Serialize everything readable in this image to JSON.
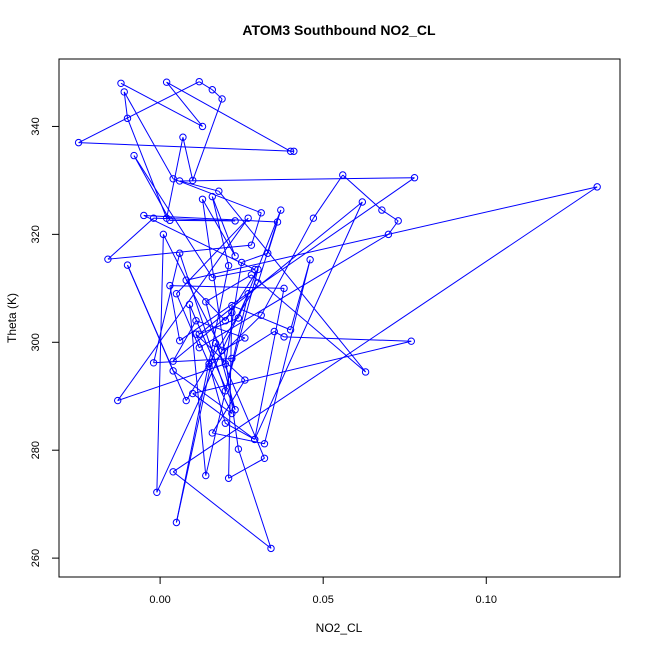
{
  "chart_data": {
    "type": "line",
    "title": "ATOM3 Southbound NO2_CL",
    "xlabel": "NO2_CL",
    "ylabel": "Theta (K)",
    "xlim": [
      -0.031,
      0.141
    ],
    "ylim": [
      256.5,
      352.5
    ],
    "xticks": [
      0.0,
      0.05,
      0.1
    ],
    "xtick_labels": [
      "0.00",
      "0.05",
      "0.10"
    ],
    "yticks": [
      260,
      280,
      300,
      320,
      340
    ],
    "ytick_labels": [
      "260",
      "280",
      "300",
      "320",
      "340"
    ],
    "grid": false,
    "legend": "none",
    "color": "#0000ff",
    "marker": "open-circle",
    "series": [
      {
        "x": [
          -0.012,
          0.013,
          0.002,
          0.04,
          0.041,
          -0.025,
          0.012,
          0.016,
          0.019,
          0.01,
          0.007,
          0.002,
          -0.01,
          -0.011,
          0.004,
          0.031,
          0.028,
          -0.016,
          -0.002,
          0.023,
          0.003,
          -0.008,
          0.016,
          0.029,
          -0.005,
          0.036,
          0.033,
          0.025,
          0.02,
          -0.013,
          0.027,
          0.005,
          0.012,
          0.07,
          0.073,
          0.068,
          0.056,
          0.047,
          0.031,
          0.015,
          0.022,
          0.004,
          -0.01,
          0.008,
          0.03,
          0.037,
          0.024,
          0.012,
          0.062,
          0.029,
          0.01,
          0.077,
          0.038,
          0.035,
          0.022,
          -0.002,
          0.006,
          0.02,
          0.03,
          0.02,
          0.008,
          0.134,
          0.004,
          0.034,
          0.024,
          0.013,
          0.023,
          0.016,
          0.021,
          0.005,
          0.017,
          0.032,
          0.021,
          0.022,
          0.04,
          0.046,
          0.032,
          0.016,
          0.026,
          0.011,
          0.015,
          0.02,
          0.029,
          0.038,
          0.003,
          0.006,
          0.078,
          0.006,
          0.018,
          0.063,
          0.028,
          0.014,
          0.023,
          0.009,
          0.014,
          0.027,
          -0.001,
          0.001,
          0.019,
          0.026,
          0.011,
          0.004,
          0.022
        ],
        "y": [
          348.0,
          340.0,
          348.2,
          335.4,
          335.4,
          337.0,
          348.3,
          346.8,
          345.1,
          330.0,
          338.0,
          323.0,
          341.5,
          346.4,
          330.3,
          324.0,
          318.0,
          315.4,
          323.0,
          322.5,
          322.6,
          334.6,
          312.0,
          313.5,
          323.5,
          322.3,
          316.5,
          314.8,
          296.0,
          289.2,
          323.0,
          309.0,
          299.0,
          320.0,
          322.5,
          324.5,
          331.0,
          323.0,
          305.0,
          295.5,
          286.8,
          294.7,
          314.3,
          289.2,
          311.0,
          324.5,
          304.5,
          301.5,
          326.0,
          282.0,
          290.5,
          300.2,
          301.0,
          302.0,
          297.0,
          296.2,
          316.5,
          291.0,
          313.5,
          304.0,
          311.5,
          328.8,
          276.0,
          261.8,
          280.2,
          326.5,
          316.0,
          327.0,
          314.2,
          266.6,
          299.8,
          278.5,
          274.8,
          306.8,
          302.3,
          315.3,
          281.2,
          283.2,
          293.0,
          301.5,
          296.0,
          285.0,
          282.0,
          310.0,
          310.5,
          300.3,
          330.5,
          329.9,
          328.0,
          294.5,
          312.5,
          307.5,
          287.5,
          307.0,
          275.3,
          309.0,
          272.2,
          320.0,
          298.5,
          300.8,
          304.0,
          296.5,
          305.5
        ]
      }
    ]
  }
}
